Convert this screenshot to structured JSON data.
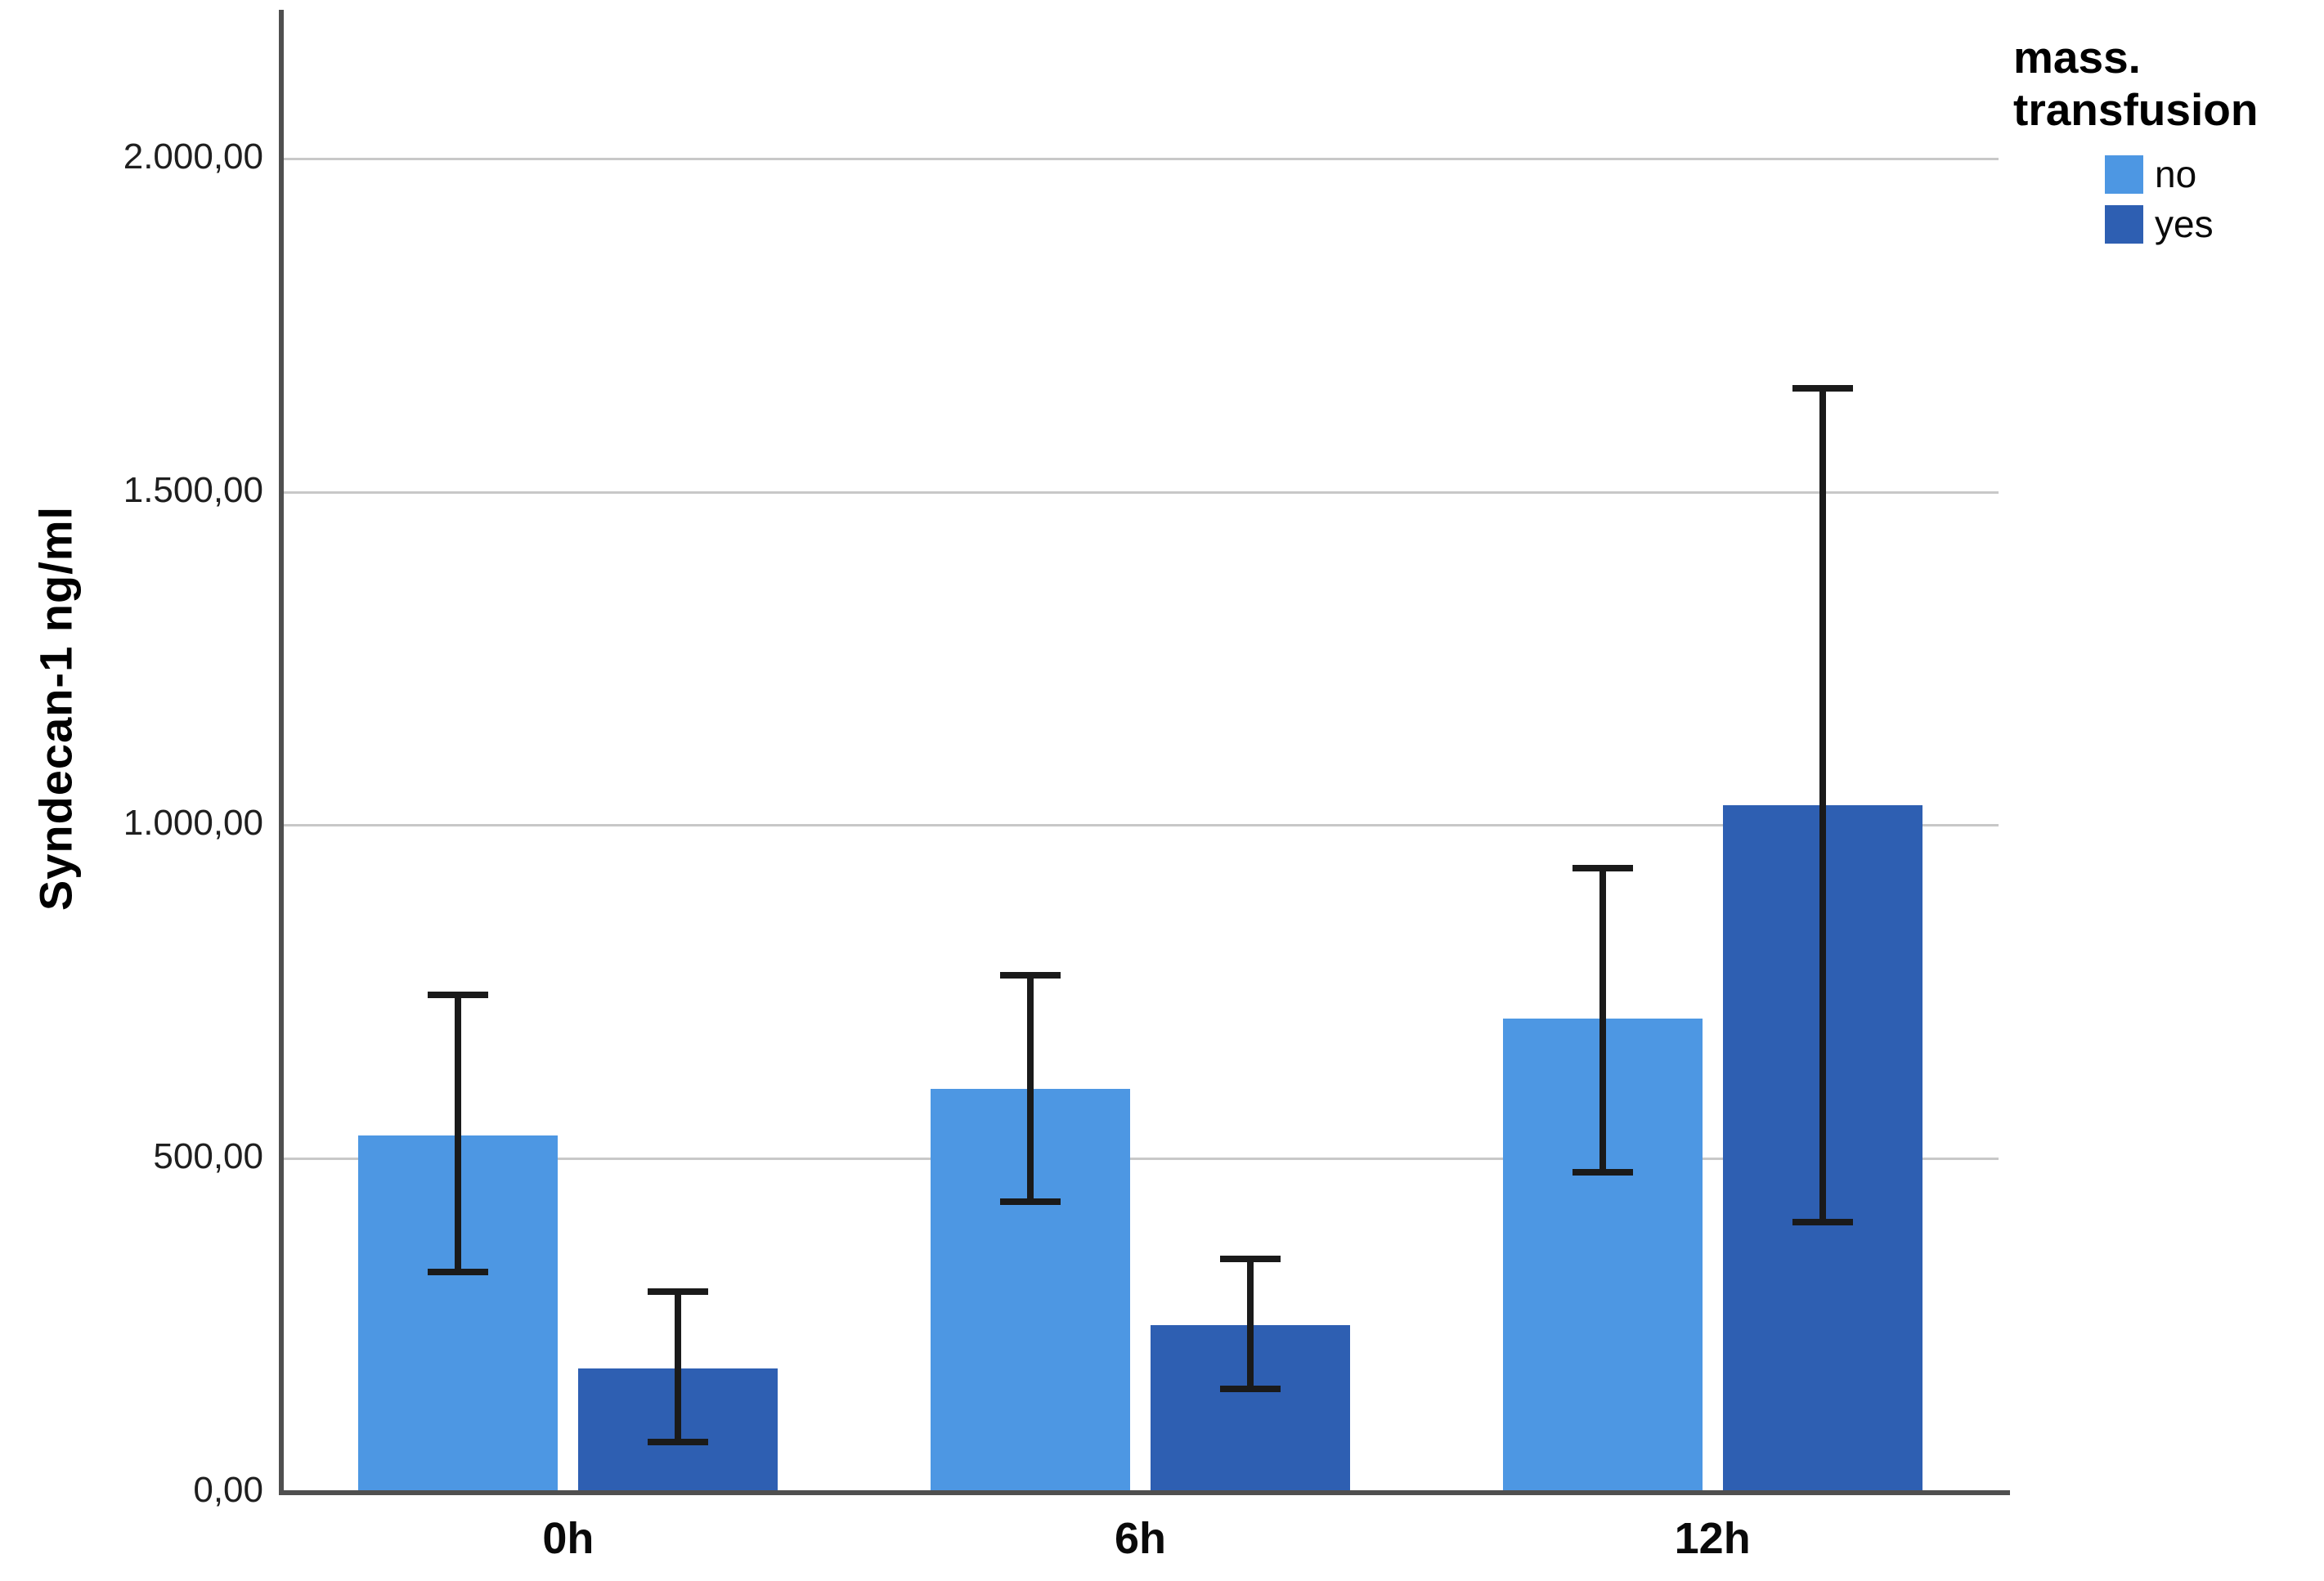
{
  "page": {
    "background": "#FFFFFF"
  },
  "chart_data": {
    "type": "bar",
    "title": "",
    "xlabel": "",
    "ylabel": "Syndecan-1 ng/ml",
    "categories": [
      "0h",
      "6h",
      "12h"
    ],
    "series": [
      {
        "name": "no",
        "color": "#4D97E3",
        "values": [
          535,
          605,
          710
        ],
        "err_low": [
          330,
          435,
          480
        ],
        "err_high": [
          745,
          775,
          935
        ]
      },
      {
        "name": "yes",
        "color": "#2E5FB2",
        "values": [
          185,
          250,
          1030
        ],
        "err_low": [
          75,
          155,
          405
        ],
        "err_high": [
          300,
          350,
          1655
        ]
      }
    ],
    "ylim": [
      0,
      2223
    ],
    "yticks": [
      {
        "value": 0,
        "label": "0,00"
      },
      {
        "value": 500,
        "label": "500,00"
      },
      {
        "value": 1000,
        "label": "1.000,00"
      },
      {
        "value": 1500,
        "label": "1.500,00"
      },
      {
        "value": 2000,
        "label": "2.000,00"
      }
    ],
    "grid": true,
    "legend_position": "top-right",
    "legend": {
      "title_lines": [
        "mass.",
        "transfusion"
      ],
      "items": [
        {
          "label": "no",
          "color": "#4D97E3"
        },
        {
          "label": "yes",
          "color": "#2E5FB2"
        }
      ]
    },
    "colors": {
      "gridline": "#C8C8C8",
      "axis": "#4F4F4F",
      "error_bar": "#1A1A1A",
      "text": "#000000"
    }
  }
}
